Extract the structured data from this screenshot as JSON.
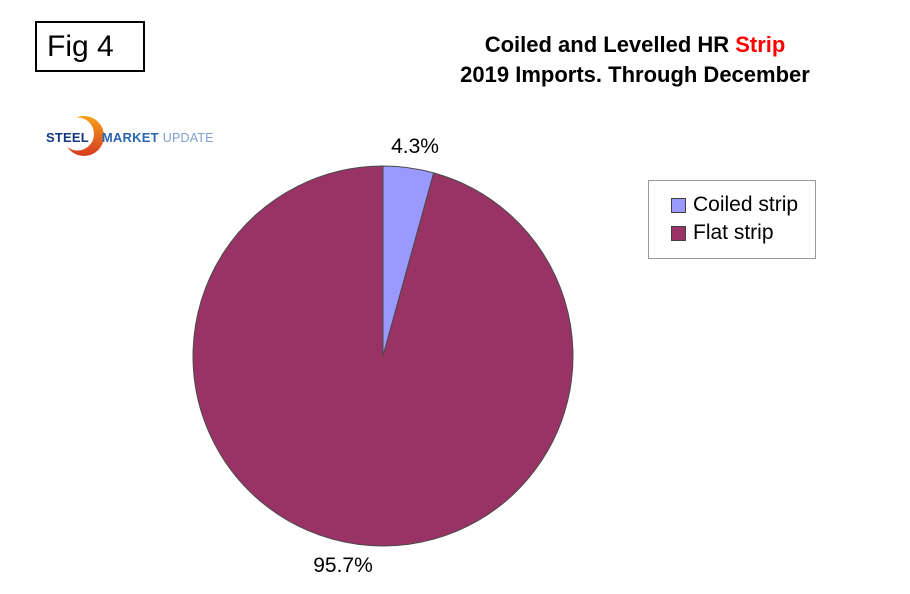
{
  "figure": {
    "label": "Fig 4"
  },
  "header": {
    "title_line1_black": "Coiled and Levelled HR",
    "title_line1_red": "Strip",
    "title_line2": "2019 Imports. Through December"
  },
  "logo": {
    "word_steel": "STEEL",
    "word_market": "MARKET",
    "word_update": "UPDATE",
    "steel_color": "#14387F",
    "market_color": "#2A65B0",
    "update_color": "#7D9FD1",
    "crescent_top_color": "#F6A11C",
    "crescent_bottom_color": "#D63A21"
  },
  "chart_data": {
    "type": "pie",
    "title": "Coiled and Levelled HR Strip",
    "subtitle": "2019 Imports. Through December",
    "categories": [
      "Coiled strip",
      "Flat strip"
    ],
    "values": [
      4.3,
      95.7
    ],
    "value_unit": "percent",
    "slice_labels": [
      "4.3%",
      "95.7%"
    ],
    "colors": [
      "#9999FF",
      "#993366"
    ],
    "slice_border_color": "#4A4A4A",
    "start_angle_deg": 0,
    "direction": "clockwise",
    "legend_position": "right"
  },
  "legend": {
    "items": [
      {
        "label": "Coiled strip",
        "color": "#9999FF"
      },
      {
        "label": "Flat strip",
        "color": "#993366"
      }
    ]
  }
}
